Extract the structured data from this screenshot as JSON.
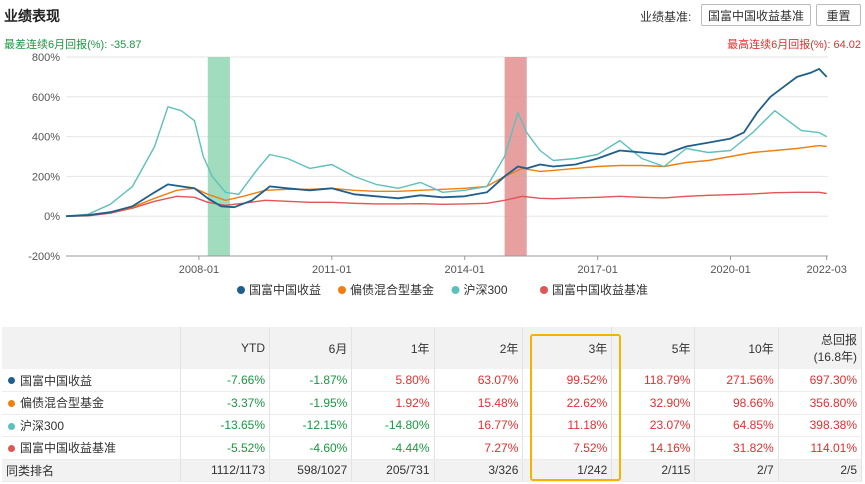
{
  "header": {
    "title": "业绩表现",
    "benchmark_label": "业绩基准:",
    "benchmark_button": "国富中国收益基准",
    "reset_button": "重置"
  },
  "summary": {
    "worst": "最差连续6月回报(%): -35.87",
    "best": "最高连续6月回报(%): 64.02"
  },
  "colors": {
    "fund": "#1f5f8b",
    "category": "#f07f0f",
    "hs300": "#5ec0bb",
    "benchmark": "#e05555",
    "green_band": "#8fd6b2",
    "red_band": "#e38f8f",
    "highlight": "#f5b301"
  },
  "chart_data": {
    "type": "line",
    "x_range": [
      2005.0,
      2022.2
    ],
    "ylim": [
      -200,
      800
    ],
    "y_ticks": [
      "-200%",
      "0%",
      "200%",
      "400%",
      "600%",
      "800%"
    ],
    "x_ticks": [
      {
        "label": "2008-01",
        "x": 2008.0
      },
      {
        "label": "2011-01",
        "x": 2011.0
      },
      {
        "label": "2014-01",
        "x": 2014.0
      },
      {
        "label": "2017-01",
        "x": 2017.0
      },
      {
        "label": "2020-01",
        "x": 2020.0
      },
      {
        "label": "2022-03",
        "x": 2022.17
      }
    ],
    "bands": [
      {
        "x0": 2008.2,
        "x1": 2008.7,
        "kind": "worst"
      },
      {
        "x0": 2014.9,
        "x1": 2015.4,
        "kind": "best"
      }
    ],
    "series": [
      {
        "name": "国富中国收益",
        "key": "fund",
        "x": [
          2005.0,
          2005.5,
          2006.0,
          2006.5,
          2007.0,
          2007.3,
          2007.6,
          2007.9,
          2008.2,
          2008.5,
          2008.8,
          2009.2,
          2009.6,
          2010.0,
          2010.5,
          2011.0,
          2011.5,
          2012.0,
          2012.5,
          2013.0,
          2013.5,
          2014.0,
          2014.5,
          2014.9,
          2015.2,
          2015.4,
          2015.7,
          2016.0,
          2016.5,
          2017.0,
          2017.5,
          2018.0,
          2018.5,
          2019.0,
          2019.5,
          2020.0,
          2020.3,
          2020.6,
          2020.9,
          2021.2,
          2021.5,
          2021.8,
          2022.0,
          2022.17
        ],
        "y": [
          0,
          5,
          20,
          50,
          120,
          160,
          150,
          140,
          90,
          50,
          45,
          80,
          150,
          140,
          130,
          140,
          110,
          100,
          90,
          105,
          95,
          100,
          120,
          200,
          250,
          240,
          260,
          250,
          260,
          290,
          330,
          320,
          310,
          350,
          370,
          390,
          420,
          520,
          600,
          650,
          700,
          720,
          740,
          700
        ]
      },
      {
        "name": "偏债混合型基金",
        "key": "category",
        "x": [
          2005.0,
          2005.5,
          2006.0,
          2006.5,
          2007.0,
          2007.5,
          2007.9,
          2008.2,
          2008.6,
          2009.0,
          2009.5,
          2010.0,
          2010.5,
          2011.0,
          2011.5,
          2012.0,
          2012.5,
          2013.0,
          2013.5,
          2014.0,
          2014.5,
          2014.9,
          2015.3,
          2015.7,
          2016.0,
          2016.5,
          2017.0,
          2017.5,
          2018.0,
          2018.5,
          2019.0,
          2019.5,
          2020.0,
          2020.5,
          2021.0,
          2021.5,
          2022.0,
          2022.17
        ],
        "y": [
          0,
          5,
          20,
          45,
          90,
          130,
          140,
          110,
          80,
          100,
          130,
          135,
          135,
          140,
          130,
          125,
          125,
          130,
          135,
          140,
          150,
          200,
          240,
          225,
          230,
          240,
          250,
          255,
          255,
          250,
          270,
          280,
          300,
          320,
          330,
          340,
          355,
          350
        ]
      },
      {
        "name": "沪深300",
        "key": "hs300",
        "x": [
          2005.0,
          2005.5,
          2006.0,
          2006.5,
          2007.0,
          2007.3,
          2007.6,
          2007.9,
          2008.1,
          2008.3,
          2008.6,
          2008.9,
          2009.3,
          2009.6,
          2010.0,
          2010.5,
          2011.0,
          2011.5,
          2012.0,
          2012.5,
          2013.0,
          2013.5,
          2014.0,
          2014.5,
          2014.9,
          2015.2,
          2015.4,
          2015.7,
          2016.0,
          2016.5,
          2017.0,
          2017.5,
          2018.0,
          2018.5,
          2019.0,
          2019.5,
          2020.0,
          2020.5,
          2021.0,
          2021.3,
          2021.6,
          2022.0,
          2022.17
        ],
        "y": [
          0,
          10,
          60,
          150,
          350,
          550,
          530,
          480,
          300,
          200,
          120,
          110,
          230,
          310,
          290,
          240,
          260,
          200,
          160,
          140,
          170,
          120,
          130,
          150,
          300,
          520,
          420,
          330,
          280,
          290,
          310,
          380,
          290,
          250,
          340,
          320,
          330,
          420,
          530,
          480,
          430,
          420,
          400
        ]
      },
      {
        "name": "国富中国收益基准",
        "key": "benchmark",
        "x": [
          2005.0,
          2005.5,
          2006.0,
          2006.5,
          2007.0,
          2007.5,
          2007.9,
          2008.2,
          2008.6,
          2009.0,
          2009.5,
          2010.0,
          2010.5,
          2011.0,
          2011.5,
          2012.0,
          2012.5,
          2013.0,
          2013.5,
          2014.0,
          2014.5,
          2014.9,
          2015.3,
          2015.7,
          2016.0,
          2016.5,
          2017.0,
          2017.5,
          2018.0,
          2018.5,
          2019.0,
          2019.5,
          2020.0,
          2020.5,
          2021.0,
          2021.5,
          2022.0,
          2022.17
        ],
        "y": [
          0,
          2,
          15,
          40,
          75,
          100,
          95,
          70,
          55,
          65,
          80,
          75,
          70,
          70,
          65,
          62,
          62,
          63,
          60,
          62,
          65,
          80,
          100,
          90,
          88,
          92,
          95,
          100,
          95,
          92,
          100,
          105,
          108,
          112,
          118,
          120,
          120,
          114
        ]
      }
    ]
  },
  "table": {
    "headers": [
      "",
      "YTD",
      "6月",
      "1年",
      "2年",
      "3年",
      "5年",
      "10年",
      "总回报\n(16.8年)"
    ],
    "header_total_1": "总回报",
    "header_total_2": "(16.8年)",
    "rows": [
      {
        "key": "fund",
        "name": "国富中国收益",
        "values": [
          "-7.66%",
          "-1.87%",
          "5.80%",
          "63.07%",
          "99.52%",
          "118.79%",
          "271.56%",
          "697.30%"
        ]
      },
      {
        "key": "category",
        "name": "偏债混合型基金",
        "values": [
          "-3.37%",
          "-1.95%",
          "1.92%",
          "15.48%",
          "22.62%",
          "32.90%",
          "98.66%",
          "356.80%"
        ]
      },
      {
        "key": "hs300",
        "name": "沪深300",
        "values": [
          "-13.65%",
          "-12.15%",
          "-14.80%",
          "16.77%",
          "11.18%",
          "23.07%",
          "64.85%",
          "398.38%"
        ]
      },
      {
        "key": "benchmark",
        "name": "国富中国收益基准",
        "values": [
          "-5.52%",
          "-4.60%",
          "-4.44%",
          "7.27%",
          "7.52%",
          "14.16%",
          "31.82%",
          "114.01%"
        ]
      }
    ],
    "rank": {
      "name": "同类排名",
      "values": [
        "1112/1173",
        "598/1027",
        "205/731",
        "3/326",
        "1/242",
        "2/115",
        "2/7",
        "2/5"
      ]
    }
  }
}
